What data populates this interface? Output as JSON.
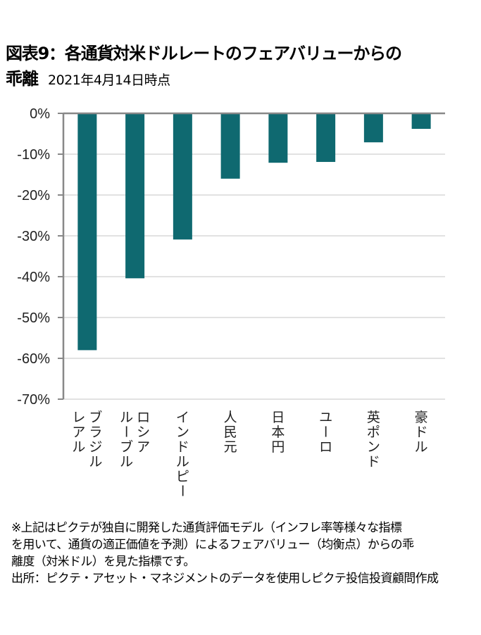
{
  "header": {
    "title_line1": "図表9：各通貨対米ドルレートのフェアバリューからの",
    "title_line2_main": "乖離",
    "title_line2_date": "2021年4月14日時点"
  },
  "colors": {
    "bar": "#0f6970",
    "axis": "#888888",
    "grid": "#d9d9d9"
  },
  "chart_data": {
    "type": "bar",
    "title": "各通貨対米ドルレートのフェアバリューからの乖離",
    "subtitle": "2021年4月14日時点",
    "xlabel": "",
    "ylabel": "",
    "categories": [
      [
        "ブラジル",
        "レアル"
      ],
      [
        "ロシア",
        "ルーブル"
      ],
      [
        "インドルピー"
      ],
      [
        "人民元"
      ],
      [
        "日本円"
      ],
      [
        "ユーロ"
      ],
      [
        "英ポンド"
      ],
      [
        "豪ドル"
      ]
    ],
    "values": [
      -58.0,
      -40.4,
      -30.9,
      -16.0,
      -12.1,
      -11.9,
      -7.1,
      -3.8
    ],
    "unit": "%",
    "ylim": [
      -70,
      0
    ],
    "yticks": [
      0,
      -10,
      -20,
      -30,
      -40,
      -50,
      -60,
      -70
    ],
    "ytick_labels": [
      "0%",
      "-10%",
      "-20%",
      "-30%",
      "-40%",
      "-50%",
      "-60%",
      "-70%"
    ],
    "grid": true,
    "legend": "none"
  },
  "notes": {
    "lines": [
      "※上記はピクテが独自に開発した通貨評価モデル（インフレ率等様々な指標",
      "を用いて、通貨の適正価値を予測）によるフェアバリュー（均衡点）からの乖",
      "離度（対米ドル）を見た指標です。",
      "出所：ピクテ・アセット・マネジメントのデータを使用しピクテ投信投資顧問作成"
    ]
  }
}
